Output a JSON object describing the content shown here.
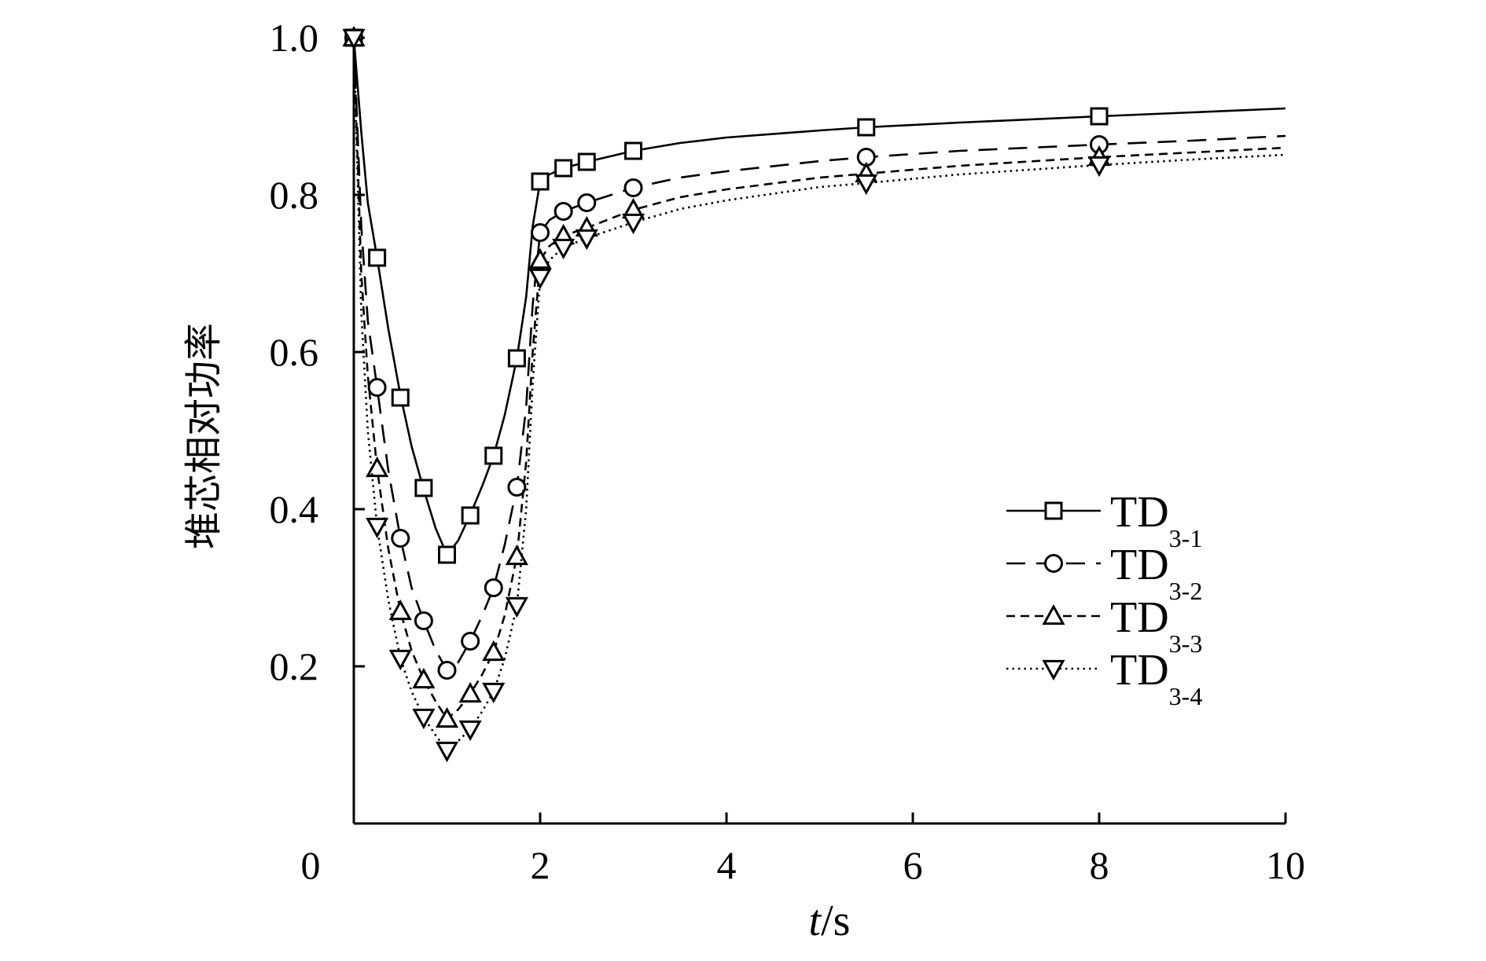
{
  "chart_data": {
    "type": "line",
    "title": "",
    "xlabel": {
      "italic": "t",
      "rest": "/s"
    },
    "ylabel": "堆芯相对功率",
    "xlim": [
      0,
      10
    ],
    "ylim": [
      0.0,
      1.0
    ],
    "x_ticks": [
      0,
      2,
      4,
      6,
      8,
      10
    ],
    "x_tick_labels": [
      "0",
      "2",
      "4",
      "6",
      "8",
      "10"
    ],
    "y_ticks": [
      0.2,
      0.4,
      0.6,
      0.8,
      1.0
    ],
    "y_tick_labels": [
      "0.2",
      "0.4",
      "0.6",
      "0.8",
      "1.0"
    ],
    "legend_position": "right-center",
    "grid": false,
    "series": [
      {
        "name": "TD3-1",
        "legend_main": "TD",
        "legend_sub": "3-1",
        "dash": "solid",
        "marker": "square",
        "line": [
          [
            0,
            1.0
          ],
          [
            0.08,
            0.88
          ],
          [
            0.15,
            0.79
          ],
          [
            0.25,
            0.72
          ],
          [
            0.37,
            0.63
          ],
          [
            0.5,
            0.545
          ],
          [
            0.62,
            0.48
          ],
          [
            0.75,
            0.425
          ],
          [
            0.88,
            0.375
          ],
          [
            1.0,
            0.342
          ],
          [
            1.12,
            0.36
          ],
          [
            1.25,
            0.393
          ],
          [
            1.38,
            0.43
          ],
          [
            1.5,
            0.468
          ],
          [
            1.62,
            0.52
          ],
          [
            1.75,
            0.592
          ],
          [
            1.85,
            0.67
          ],
          [
            1.92,
            0.76
          ],
          [
            2.0,
            0.817
          ],
          [
            2.1,
            0.826
          ],
          [
            2.25,
            0.834
          ],
          [
            2.5,
            0.842
          ],
          [
            3.0,
            0.856
          ],
          [
            3.5,
            0.866
          ],
          [
            4.0,
            0.873
          ],
          [
            5.0,
            0.882
          ],
          [
            5.5,
            0.886
          ],
          [
            6.5,
            0.892
          ],
          [
            8.0,
            0.9
          ],
          [
            9.0,
            0.905
          ],
          [
            10.0,
            0.91
          ]
        ],
        "markers": [
          [
            0,
            1.0
          ],
          [
            0.25,
            0.72
          ],
          [
            0.5,
            0.542
          ],
          [
            0.75,
            0.427
          ],
          [
            1.0,
            0.342
          ],
          [
            1.25,
            0.392
          ],
          [
            1.5,
            0.468
          ],
          [
            1.75,
            0.592
          ],
          [
            2.0,
            0.817
          ],
          [
            2.25,
            0.834
          ],
          [
            2.5,
            0.842
          ],
          [
            3.0,
            0.856
          ],
          [
            5.5,
            0.886
          ],
          [
            8.0,
            0.9
          ]
        ]
      },
      {
        "name": "TD3-2",
        "legend_main": "TD",
        "legend_sub": "3-2",
        "dash": "dashed",
        "marker": "circle",
        "line": [
          [
            0,
            1.0
          ],
          [
            0.08,
            0.76
          ],
          [
            0.15,
            0.64
          ],
          [
            0.25,
            0.555
          ],
          [
            0.37,
            0.45
          ],
          [
            0.5,
            0.363
          ],
          [
            0.62,
            0.3
          ],
          [
            0.75,
            0.258
          ],
          [
            0.88,
            0.22
          ],
          [
            1.0,
            0.195
          ],
          [
            1.12,
            0.205
          ],
          [
            1.25,
            0.232
          ],
          [
            1.38,
            0.265
          ],
          [
            1.5,
            0.3
          ],
          [
            1.62,
            0.355
          ],
          [
            1.75,
            0.428
          ],
          [
            1.85,
            0.53
          ],
          [
            1.92,
            0.66
          ],
          [
            2.0,
            0.752
          ],
          [
            2.1,
            0.768
          ],
          [
            2.25,
            0.779
          ],
          [
            2.5,
            0.79
          ],
          [
            3.0,
            0.809
          ],
          [
            3.5,
            0.822
          ],
          [
            4.0,
            0.83
          ],
          [
            5.0,
            0.843
          ],
          [
            5.5,
            0.848
          ],
          [
            6.5,
            0.856
          ],
          [
            8.0,
            0.864
          ],
          [
            9.0,
            0.869
          ],
          [
            10.0,
            0.875
          ]
        ],
        "markers": [
          [
            0,
            1.0
          ],
          [
            0.25,
            0.555
          ],
          [
            0.5,
            0.363
          ],
          [
            0.75,
            0.258
          ],
          [
            1.0,
            0.195
          ],
          [
            1.25,
            0.232
          ],
          [
            1.5,
            0.3
          ],
          [
            1.75,
            0.428
          ],
          [
            2.0,
            0.752
          ],
          [
            2.25,
            0.779
          ],
          [
            2.5,
            0.79
          ],
          [
            3.0,
            0.809
          ],
          [
            5.5,
            0.848
          ],
          [
            8.0,
            0.864
          ]
        ]
      },
      {
        "name": "TD3-3",
        "legend_main": "TD",
        "legend_sub": "3-3",
        "dash": "short-dashed",
        "marker": "triangle-up",
        "line": [
          [
            0,
            1.0
          ],
          [
            0.08,
            0.7
          ],
          [
            0.15,
            0.57
          ],
          [
            0.25,
            0.452
          ],
          [
            0.37,
            0.35
          ],
          [
            0.5,
            0.27
          ],
          [
            0.62,
            0.22
          ],
          [
            0.75,
            0.183
          ],
          [
            0.88,
            0.155
          ],
          [
            1.0,
            0.133
          ],
          [
            1.12,
            0.145
          ],
          [
            1.25,
            0.165
          ],
          [
            1.38,
            0.19
          ],
          [
            1.5,
            0.218
          ],
          [
            1.62,
            0.265
          ],
          [
            1.75,
            0.34
          ],
          [
            1.85,
            0.46
          ],
          [
            1.92,
            0.6
          ],
          [
            2.0,
            0.717
          ],
          [
            2.1,
            0.735
          ],
          [
            2.25,
            0.748
          ],
          [
            2.5,
            0.758
          ],
          [
            3.0,
            0.781
          ],
          [
            3.5,
            0.797
          ],
          [
            4.0,
            0.807
          ],
          [
            5.0,
            0.822
          ],
          [
            5.5,
            0.827
          ],
          [
            6.5,
            0.837
          ],
          [
            8.0,
            0.848
          ],
          [
            9.0,
            0.854
          ],
          [
            10.0,
            0.86
          ]
        ],
        "markers": [
          [
            0,
            1.0
          ],
          [
            0.25,
            0.452
          ],
          [
            0.5,
            0.27
          ],
          [
            0.75,
            0.183
          ],
          [
            1.0,
            0.133
          ],
          [
            1.25,
            0.165
          ],
          [
            1.5,
            0.218
          ],
          [
            1.75,
            0.34
          ],
          [
            2.0,
            0.717
          ],
          [
            2.25,
            0.748
          ],
          [
            2.5,
            0.758
          ],
          [
            3.0,
            0.781
          ],
          [
            5.5,
            0.827
          ],
          [
            8.0,
            0.848
          ]
        ]
      },
      {
        "name": "TD3-4",
        "legend_main": "TD",
        "legend_sub": "3-4",
        "dash": "dotted",
        "marker": "triangle-down",
        "line": [
          [
            0,
            1.0
          ],
          [
            0.08,
            0.65
          ],
          [
            0.15,
            0.5
          ],
          [
            0.25,
            0.378
          ],
          [
            0.37,
            0.285
          ],
          [
            0.5,
            0.21
          ],
          [
            0.62,
            0.168
          ],
          [
            0.75,
            0.135
          ],
          [
            0.88,
            0.112
          ],
          [
            1.0,
            0.093
          ],
          [
            1.12,
            0.105
          ],
          [
            1.25,
            0.12
          ],
          [
            1.38,
            0.143
          ],
          [
            1.5,
            0.168
          ],
          [
            1.62,
            0.21
          ],
          [
            1.75,
            0.277
          ],
          [
            1.85,
            0.4
          ],
          [
            1.92,
            0.56
          ],
          [
            2.0,
            0.695
          ],
          [
            2.1,
            0.717
          ],
          [
            2.25,
            0.733
          ],
          [
            2.5,
            0.745
          ],
          [
            3.0,
            0.765
          ],
          [
            3.5,
            0.782
          ],
          [
            4.0,
            0.793
          ],
          [
            5.0,
            0.81
          ],
          [
            5.5,
            0.815
          ],
          [
            6.5,
            0.826
          ],
          [
            8.0,
            0.838
          ],
          [
            9.0,
            0.845
          ],
          [
            10.0,
            0.851
          ]
        ],
        "markers": [
          [
            0,
            1.0
          ],
          [
            0.25,
            0.378
          ],
          [
            0.5,
            0.21
          ],
          [
            0.75,
            0.135
          ],
          [
            1.0,
            0.093
          ],
          [
            1.25,
            0.12
          ],
          [
            1.5,
            0.168
          ],
          [
            1.75,
            0.277
          ],
          [
            2.0,
            0.695
          ],
          [
            2.25,
            0.733
          ],
          [
            2.5,
            0.745
          ],
          [
            3.0,
            0.765
          ],
          [
            5.5,
            0.815
          ],
          [
            8.0,
            0.838
          ]
        ]
      }
    ]
  }
}
